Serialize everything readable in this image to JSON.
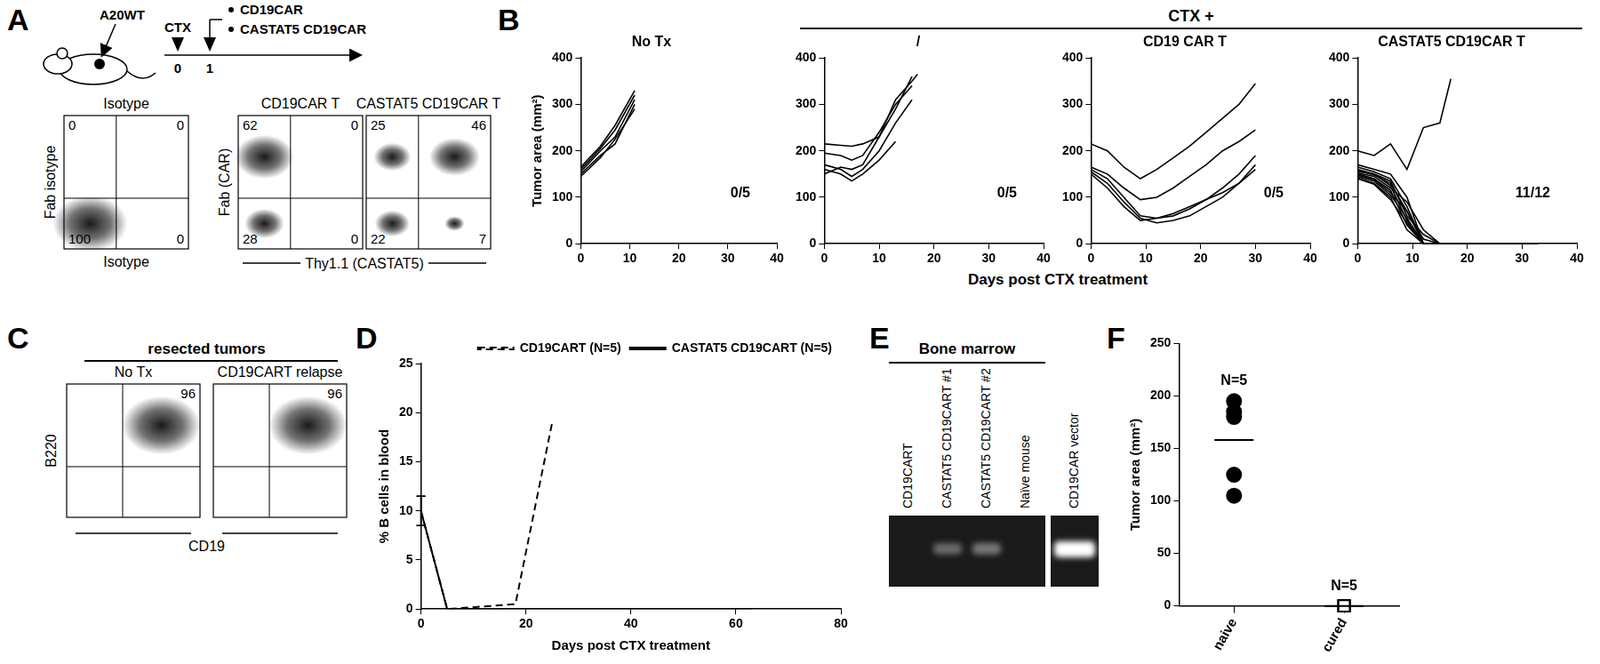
{
  "panel_labels": [
    "A",
    "B",
    "C",
    "D",
    "E",
    "F"
  ],
  "panel_A": {
    "schematic": {
      "tumor_label": "A20WT",
      "treatment_label": "CTX",
      "timepoints": [
        0,
        1
      ],
      "arms": [
        "CD19CAR",
        "CASTAT5 CD19CAR"
      ]
    },
    "plots": [
      {
        "title": "Isotype",
        "y_label": "Fab isotype",
        "x_label": "Isotype",
        "quadrants": {
          "upper_left": 0,
          "upper_right": 0,
          "lower_left": 100,
          "lower_right": 0
        }
      },
      {
        "title": "CD19CAR T",
        "y_label": "Fab (CAR)",
        "quadrants": {
          "upper_left": 62,
          "upper_right": 0,
          "lower_left": 28,
          "lower_right": 0
        }
      },
      {
        "title": "CASTAT5 CD19CAR T",
        "quadrants": {
          "upper_left": 25,
          "upper_right": 46,
          "lower_left": 22,
          "lower_right": 7
        }
      }
    ],
    "shared_x_label": "Thy1.1 (CASTAT5)"
  },
  "panel_B": {
    "group_label": "CTX +",
    "x_label": "Days post CTX treatment"
  },
  "chart_data": [
    {
      "type": "line",
      "title": "No Tx",
      "annotation": "0/5",
      "y_label": "Tumor area (mm²)",
      "color": "#000000",
      "xlim": [
        0,
        40
      ],
      "xticks": [
        0,
        10,
        20,
        30,
        40
      ],
      "ylim": [
        0,
        400
      ],
      "yticks": [
        0,
        100,
        200,
        300,
        400
      ],
      "grid": false,
      "legend": false,
      "x": [
        0,
        4,
        7,
        11
      ],
      "series": [
        {
          "values": [
            145,
            185,
            225,
            290
          ]
        },
        {
          "values": [
            150,
            190,
            215,
            300
          ]
        },
        {
          "values": [
            155,
            200,
            230,
            310
          ]
        },
        {
          "values": [
            160,
            205,
            245,
            320
          ]
        },
        {
          "values": [
            165,
            210,
            255,
            330
          ]
        }
      ]
    },
    {
      "type": "line",
      "title": "/",
      "annotation": "0/5",
      "color": "#000000",
      "xlim": [
        0,
        40
      ],
      "xticks": [
        0,
        10,
        20,
        30,
        40
      ],
      "ylim": [
        0,
        400
      ],
      "yticks": [
        0,
        100,
        200,
        300,
        400
      ],
      "grid": false,
      "legend": false,
      "x": [
        0,
        3,
        5,
        7,
        10,
        13,
        16,
        17
      ],
      "series": [
        {
          "values": [
            215,
            212,
            210,
            215,
            230,
            290,
            360,
            null
          ]
        },
        {
          "values": [
            195,
            190,
            180,
            190,
            240,
            300,
            340,
            null
          ]
        },
        {
          "values": [
            170,
            160,
            145,
            160,
            200,
            260,
            310,
            null
          ]
        },
        {
          "values": [
            160,
            150,
            135,
            150,
            180,
            220,
            null,
            null
          ]
        },
        {
          "values": [
            150,
            165,
            160,
            170,
            230,
            310,
            350,
            365
          ]
        }
      ]
    },
    {
      "type": "line",
      "title": "CD19 CAR T",
      "annotation": "0/5",
      "color": "#000000",
      "xlim": [
        0,
        40
      ],
      "xticks": [
        0,
        10,
        20,
        30,
        40
      ],
      "ylim": [
        0,
        400
      ],
      "yticks": [
        0,
        100,
        200,
        300,
        400
      ],
      "grid": false,
      "legend": false,
      "x": [
        0,
        3,
        6,
        9,
        12,
        15,
        18,
        21,
        24,
        27,
        30
      ],
      "series": [
        {
          "values": [
            215,
            200,
            165,
            140,
            160,
            185,
            210,
            240,
            270,
            300,
            345
          ]
        },
        {
          "values": [
            165,
            150,
            120,
            95,
            100,
            120,
            145,
            170,
            200,
            220,
            245
          ]
        },
        {
          "values": [
            160,
            140,
            100,
            60,
            55,
            60,
            75,
            95,
            120,
            150,
            190
          ]
        },
        {
          "values": [
            155,
            130,
            90,
            55,
            45,
            50,
            60,
            80,
            100,
            130,
            170
          ]
        },
        {
          "values": [
            150,
            120,
            80,
            50,
            55,
            65,
            80,
            95,
            110,
            130,
            160
          ]
        }
      ]
    },
    {
      "type": "line",
      "title": "CASTAT5 CD19CAR T",
      "annotation": "11/12",
      "color": "#000000",
      "xlim": [
        0,
        40
      ],
      "xticks": [
        0,
        10,
        20,
        30,
        40
      ],
      "ylim": [
        0,
        400
      ],
      "yticks": [
        0,
        100,
        200,
        300,
        400
      ],
      "grid": false,
      "legend": false,
      "x": [
        0,
        3,
        6,
        9,
        12,
        15,
        17,
        20,
        25,
        30,
        33
      ],
      "series": [
        {
          "values": [
            200,
            190,
            215,
            160,
            250,
            260,
            355,
            null,
            null,
            null,
            null
          ]
        },
        {
          "values": [
            170,
            160,
            150,
            100,
            0,
            0,
            0,
            0,
            0,
            0,
            0
          ]
        },
        {
          "values": [
            165,
            155,
            140,
            80,
            0,
            0,
            0,
            0,
            0,
            0,
            0
          ]
        },
        {
          "values": [
            160,
            150,
            135,
            60,
            20,
            0,
            0,
            0,
            0,
            0,
            0
          ]
        },
        {
          "values": [
            158,
            148,
            130,
            70,
            0,
            0,
            0,
            0,
            0,
            0,
            0
          ]
        },
        {
          "values": [
            155,
            150,
            125,
            50,
            0,
            0,
            0,
            0,
            0,
            0,
            0
          ]
        },
        {
          "values": [
            152,
            145,
            120,
            90,
            30,
            0,
            0,
            0,
            0,
            0,
            0
          ]
        },
        {
          "values": [
            150,
            140,
            115,
            40,
            0,
            0,
            0,
            0,
            0,
            0,
            0
          ]
        },
        {
          "values": [
            148,
            138,
            110,
            70,
            10,
            0,
            0,
            0,
            0,
            0,
            0
          ]
        },
        {
          "values": [
            145,
            135,
            105,
            55,
            0,
            0,
            0,
            0,
            0,
            0,
            0
          ]
        },
        {
          "values": [
            142,
            130,
            100,
            30,
            0,
            0,
            0,
            0,
            0,
            0,
            0
          ]
        },
        {
          "values": [
            140,
            128,
            95,
            45,
            0,
            0,
            0,
            0,
            0,
            0,
            0
          ]
        }
      ]
    },
    {
      "type": "line",
      "x_label": "Days post CTX treatment",
      "y_label": "% B cells in blood",
      "xlim": [
        0,
        80
      ],
      "xticks": [
        0,
        20,
        40,
        60,
        80
      ],
      "ylim": [
        0,
        25
      ],
      "yticks": [
        0,
        5,
        10,
        15,
        20,
        25
      ],
      "grid": false,
      "legend": "top-right",
      "series": [
        {
          "name": "CD19CART (N=5)",
          "color": "#000000",
          "line_style": "dashed",
          "x": [
            0,
            5,
            18,
            25
          ],
          "values": [
            10,
            0,
            0.5,
            19
          ],
          "errors": [
            1.5,
            null,
            null,
            null
          ]
        },
        {
          "name": "CASTAT5 CD19CART (N=5)",
          "color": "#000000",
          "line_style": "solid",
          "x": [
            0,
            5,
            20,
            40,
            63
          ],
          "values": [
            10,
            0,
            0,
            0,
            0
          ],
          "errors": [
            1.5,
            null,
            null,
            null,
            null
          ]
        }
      ]
    },
    {
      "type": "dot_plot",
      "y_label": "Tumor area (mm²)",
      "categories": [
        "naive",
        "cured"
      ],
      "ylim": [
        0,
        250
      ],
      "yticks": [
        0,
        50,
        100,
        150,
        200,
        250
      ],
      "grid": false,
      "legend": false,
      "groups": [
        {
          "category": "naive",
          "annotation": "N=5",
          "marker": "circle",
          "color": "#000000",
          "values": [
            195,
            185,
            180,
            125,
            105
          ],
          "mean": 158
        },
        {
          "category": "cured",
          "annotation": "N=5",
          "marker": "open_square",
          "color": "#000000",
          "values": [
            0,
            0,
            0,
            0,
            0
          ],
          "mean": 0
        }
      ]
    }
  ],
  "panel_C": {
    "header": "resected tumors",
    "y_label": "B220",
    "x_label": "CD19",
    "plots": [
      {
        "title": "No Tx",
        "quadrants": {
          "upper_right": 96
        }
      },
      {
        "title": "CD19CART relapse",
        "quadrants": {
          "upper_right": 96
        }
      }
    ]
  },
  "panel_E": {
    "header": "Bone marrow",
    "header_lanes": 4,
    "lanes": [
      {
        "label": "CD19CART",
        "band": 0
      },
      {
        "label": "CASTAT5 CD19CART #1",
        "band": 0.35
      },
      {
        "label": "CASTAT5 CD19CART #2",
        "band": 0.4
      },
      {
        "label": "Naïve mouse",
        "band": 0
      },
      {
        "label": "CD19CAR vector",
        "band": 1
      }
    ]
  }
}
